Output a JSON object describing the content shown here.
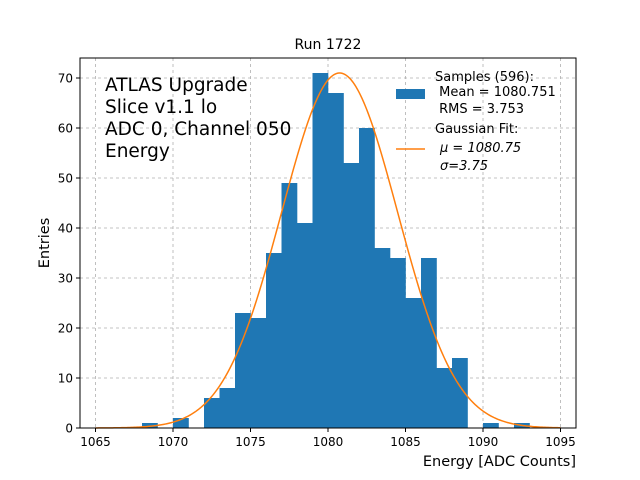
{
  "chart_data": {
    "type": "bar",
    "title": "Run 1722",
    "xlabel": "Energy [ADC Counts]",
    "ylabel": "Entries",
    "xlim": [
      1064,
      1096
    ],
    "ylim": [
      0,
      74
    ],
    "xticks": [
      1065,
      1070,
      1075,
      1080,
      1085,
      1090,
      1095
    ],
    "yticks": [
      0,
      10,
      20,
      30,
      40,
      50,
      60,
      70
    ],
    "grid": true,
    "bin_width": 1,
    "bins": [
      {
        "x": 1068,
        "count": 1
      },
      {
        "x": 1070,
        "count": 2
      },
      {
        "x": 1072,
        "count": 6
      },
      {
        "x": 1073,
        "count": 8
      },
      {
        "x": 1074,
        "count": 23
      },
      {
        "x": 1075,
        "count": 22
      },
      {
        "x": 1076,
        "count": 35
      },
      {
        "x": 1077,
        "count": 49
      },
      {
        "x": 1078,
        "count": 41
      },
      {
        "x": 1079,
        "count": 71
      },
      {
        "x": 1080,
        "count": 67
      },
      {
        "x": 1081,
        "count": 53
      },
      {
        "x": 1082,
        "count": 60
      },
      {
        "x": 1083,
        "count": 36
      },
      {
        "x": 1084,
        "count": 34
      },
      {
        "x": 1085,
        "count": 26
      },
      {
        "x": 1086,
        "count": 34
      },
      {
        "x": 1087,
        "count": 12
      },
      {
        "x": 1088,
        "count": 14
      },
      {
        "x": 1090,
        "count": 1
      },
      {
        "x": 1092,
        "count": 1
      }
    ],
    "fit": {
      "type": "gaussian",
      "mu": 1080.75,
      "sigma": 3.75,
      "peak": 71,
      "x_range": [
        1065,
        1095
      ]
    },
    "annotation_lines": [
      "ATLAS Upgrade",
      "Slice v1.1 lo",
      "ADC 0, Channel 050",
      "Energy"
    ],
    "legend": {
      "placement": "top-right",
      "hist_lines": [
        "Samples (596):",
        " Mean = 1080.751",
        " RMS = 3.753"
      ],
      "fit_lines": [
        "Gaussian Fit:",
        "μ = 1080.75",
        "σ=3.75"
      ]
    },
    "colors": {
      "hist": "#1f77b4",
      "fit": "#ff7f0e",
      "grid": "#b0b0b0"
    }
  }
}
